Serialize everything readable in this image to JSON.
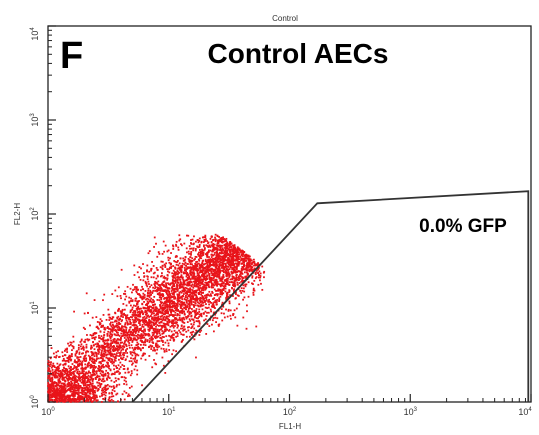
{
  "chart_data": {
    "type": "scatter",
    "top_label": "Control",
    "panel_letter": "F",
    "title": "Control AECs",
    "xlabel": "FL1-H",
    "ylabel": "FL2-H",
    "x_scale": "log",
    "y_scale": "log",
    "xlim": [
      1,
      10000
    ],
    "ylim": [
      1,
      10000
    ],
    "x_ticks": [
      {
        "base": "10",
        "exp": "0",
        "value": 1
      },
      {
        "base": "10",
        "exp": "1",
        "value": 10
      },
      {
        "base": "10",
        "exp": "2",
        "value": 100
      },
      {
        "base": "10",
        "exp": "3",
        "value": 1000
      },
      {
        "base": "10",
        "exp": "4",
        "value": 10000
      }
    ],
    "y_ticks": [
      {
        "base": "10",
        "exp": "0",
        "value": 1
      },
      {
        "base": "10",
        "exp": "1",
        "value": 10
      },
      {
        "base": "10",
        "exp": "2",
        "value": 100
      },
      {
        "base": "10",
        "exp": "3",
        "value": 1000
      },
      {
        "base": "10",
        "exp": "4",
        "value": 10000
      }
    ],
    "point_color": "#e8141a",
    "population": {
      "orientation": "diagonal",
      "x_range": [
        1,
        60
      ],
      "y_range": [
        1,
        55
      ],
      "density_center": [
        3,
        3
      ]
    },
    "gate": {
      "vertices": [
        [
          5,
          1
        ],
        [
          170,
          130
        ],
        [
          9500,
          175
        ],
        [
          9500,
          1
        ]
      ],
      "label": "0.0% GFP"
    },
    "grid": false
  }
}
